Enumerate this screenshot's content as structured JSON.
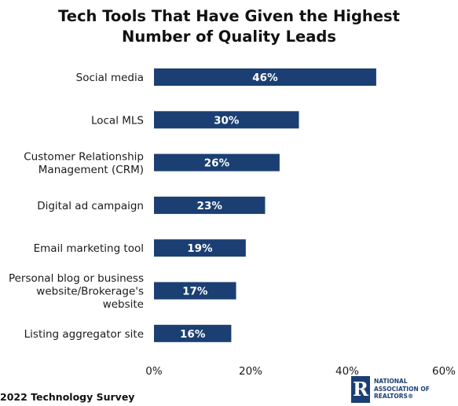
{
  "chart_data": {
    "type": "bar",
    "orientation": "horizontal",
    "title_lines": [
      "Tech Tools That Have Given the Highest",
      "Number of Quality Leads"
    ],
    "categories": [
      [
        "Social media"
      ],
      [
        "Local MLS"
      ],
      [
        "Customer Relationship",
        "Management (CRM)"
      ],
      [
        "Digital ad campaign"
      ],
      [
        "Email marketing tool"
      ],
      [
        "Personal blog or business",
        "website/Brokerage's",
        "website"
      ],
      [
        "Listing aggregator site"
      ]
    ],
    "values": [
      46,
      30,
      26,
      23,
      19,
      17,
      16
    ],
    "value_labels": [
      "46%",
      "30%",
      "26%",
      "23%",
      "19%",
      "17%",
      "16%"
    ],
    "xlim": [
      0,
      60
    ],
    "x_ticks": [
      0,
      20,
      40,
      60
    ],
    "x_tick_labels": [
      "0%",
      "20%",
      "40%",
      "60%"
    ],
    "bar_color": "#1b3f73",
    "grid": false,
    "legend": false
  },
  "source": "2022 Technology Survey",
  "logo": {
    "lines": [
      "NATIONAL",
      "ASSOCIATION OF",
      "REALTORS®"
    ],
    "color": "#1b3f73"
  }
}
